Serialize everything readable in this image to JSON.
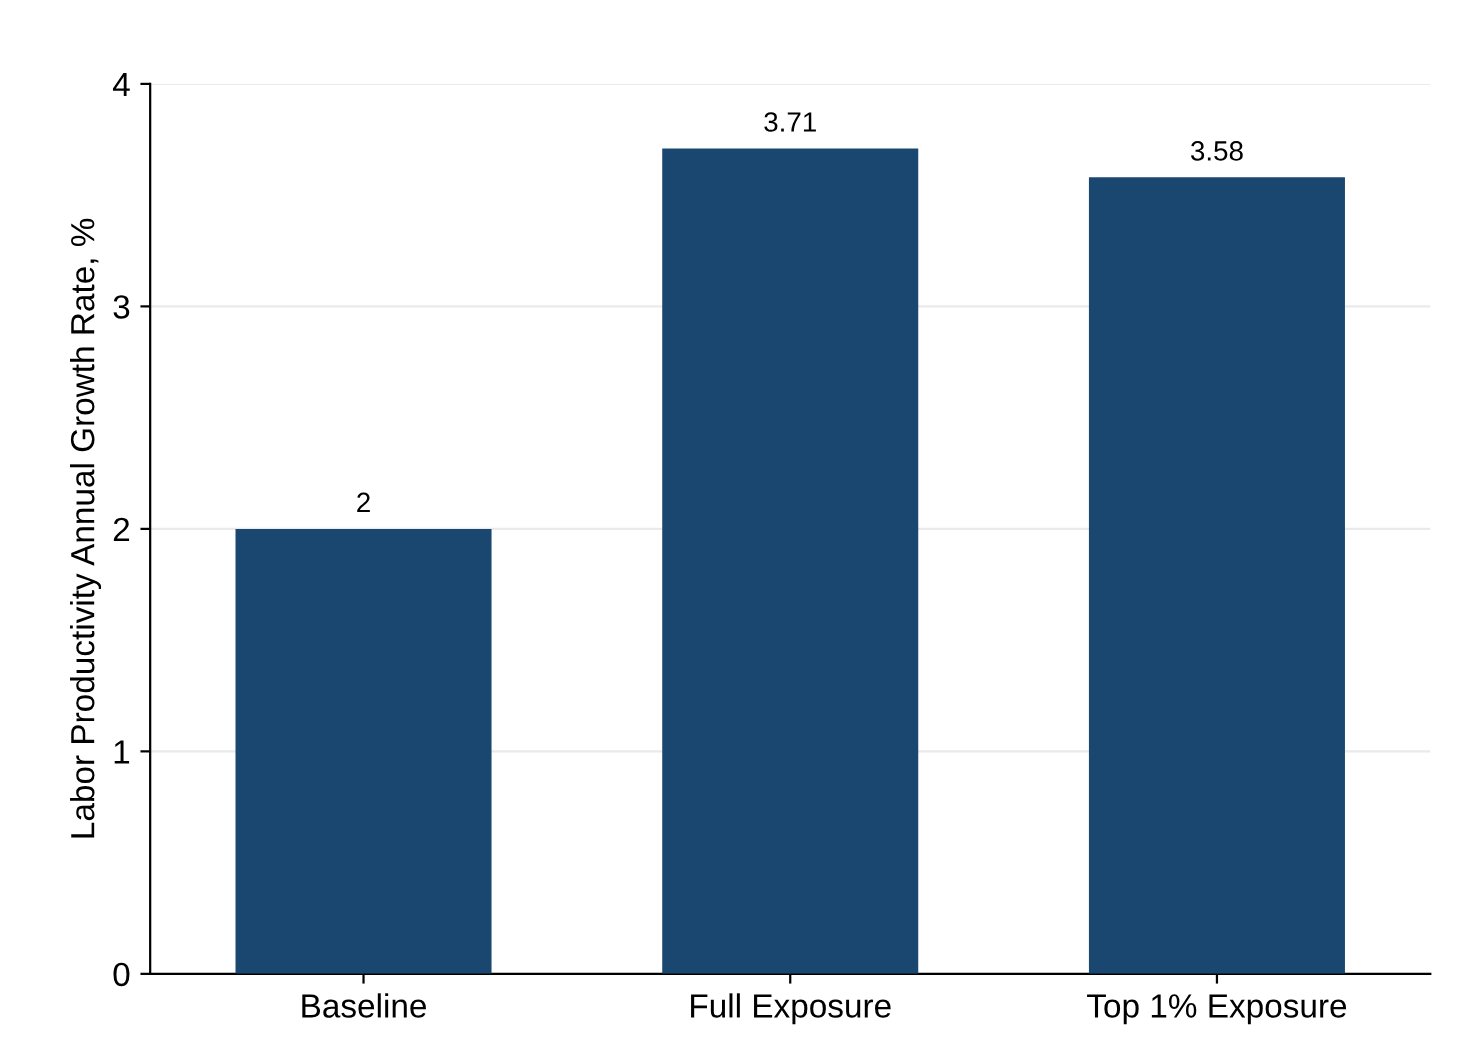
{
  "chart_data": {
    "type": "bar",
    "ylabel": "Labor Productivity Annual Growth Rate, %",
    "categories": [
      "Baseline",
      "Full Exposure",
      "Top 1% Exposure"
    ],
    "values": [
      2,
      3.71,
      3.58
    ],
    "color": "#1a476f",
    "ylim": [
      0,
      4
    ],
    "yticks": [
      0,
      1,
      2,
      3,
      4
    ],
    "grid": "y",
    "data_labels": true
  }
}
